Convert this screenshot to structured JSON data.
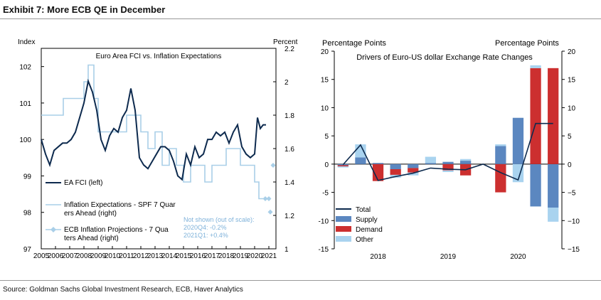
{
  "exhibit_title": "Exhibit 7: More ECB QE in December",
  "source": "Source: Goldman Sachs Global Investment Research, ECB, Haver Analytics",
  "chart_data": [
    {
      "type": "line",
      "title": "Euro Area FCI vs. Inflation Expectations",
      "left_axis_label": "Index",
      "right_axis_label": "Percent",
      "left_ylim": [
        97,
        102.5
      ],
      "left_ticks": [
        "97",
        "98",
        "99",
        "100",
        "101",
        "102"
      ],
      "right_ylim": [
        1,
        2.2
      ],
      "right_ticks": [
        "1",
        "1.2",
        "1.4",
        "1.6",
        "1.8",
        "2",
        "2.2"
      ],
      "xlim": [
        2005,
        2021.5
      ],
      "x_ticks": [
        "2005",
        "2006",
        "2007",
        "2008",
        "2009",
        "2010",
        "2011",
        "2012",
        "2013",
        "2014",
        "2015",
        "2016",
        "2017",
        "2018",
        "2019",
        "2020",
        "2021"
      ],
      "legend": [
        "EA FCI (left)",
        "Inflation Expectations - SPF 7 Quarters Ahead (right)",
        "ECB Inflation Projections - 7 Quarters Ahead (right)"
      ],
      "annotation": [
        "Not shown (out of scale):",
        "2020Q4: -0.2%",
        "2021Q1: +0.4%"
      ],
      "colors": {
        "fci": "#0d2a4e",
        "spf": "#a9cfe8",
        "ecb": "#a9cfe8"
      },
      "series": [
        {
          "name": "EA FCI (left)",
          "axis": "left",
          "x": [
            2005.0,
            2005.3,
            2005.6,
            2005.9,
            2006.2,
            2006.5,
            2006.8,
            2007.1,
            2007.4,
            2007.7,
            2008.0,
            2008.3,
            2008.6,
            2008.9,
            2009.2,
            2009.5,
            2009.8,
            2010.1,
            2010.4,
            2010.7,
            2011.0,
            2011.3,
            2011.6,
            2011.9,
            2012.2,
            2012.5,
            2012.8,
            2013.1,
            2013.4,
            2013.7,
            2014.0,
            2014.3,
            2014.6,
            2014.9,
            2015.2,
            2015.5,
            2015.8,
            2016.1,
            2016.4,
            2016.7,
            2017.0,
            2017.3,
            2017.6,
            2017.9,
            2018.2,
            2018.5,
            2018.8,
            2019.1,
            2019.4,
            2019.7,
            2020.0,
            2020.2,
            2020.4,
            2020.6,
            2020.8
          ],
          "y": [
            100.0,
            99.6,
            99.3,
            99.7,
            99.8,
            99.9,
            99.9,
            100.0,
            100.2,
            100.6,
            101.0,
            101.6,
            101.3,
            100.8,
            100.0,
            99.7,
            100.1,
            100.3,
            100.2,
            100.6,
            100.8,
            101.4,
            100.8,
            99.5,
            99.3,
            99.2,
            99.4,
            99.6,
            99.8,
            99.8,
            99.7,
            99.4,
            99.0,
            98.9,
            99.6,
            99.3,
            99.8,
            99.5,
            99.6,
            100.0,
            100.0,
            100.2,
            100.1,
            100.2,
            99.9,
            100.2,
            100.4,
            99.8,
            99.6,
            99.5,
            99.6,
            100.6,
            100.3,
            100.4,
            100.4
          ]
        },
        {
          "name": "Inflation Expectations - SPF 7 Quarters Ahead (right)",
          "axis": "right",
          "x": [
            2005.0,
            2006.5,
            2006.55,
            2007.5,
            2007.55,
            2008.0,
            2008.3,
            2008.7,
            2009.0,
            2009.5,
            2010.0,
            2010.5,
            2011.0,
            2011.5,
            2012.0,
            2012.5,
            2013.0,
            2013.5,
            2014.0,
            2014.5,
            2015.0,
            2015.5,
            2016.0,
            2016.5,
            2017.0,
            2017.5,
            2018.0,
            2018.5,
            2019.0,
            2019.5,
            2020.0,
            2020.3,
            2020.6
          ],
          "y": [
            1.8,
            1.8,
            1.9,
            1.9,
            1.9,
            2.0,
            2.1,
            1.9,
            1.7,
            1.7,
            1.7,
            1.7,
            1.8,
            1.8,
            1.7,
            1.6,
            1.7,
            1.5,
            1.6,
            1.5,
            1.4,
            1.5,
            1.5,
            1.4,
            1.5,
            1.5,
            1.6,
            1.6,
            1.5,
            1.5,
            1.4,
            1.3,
            1.3
          ]
        },
        {
          "name": "ECB Inflation Projections - 7 Quarters Ahead (right)",
          "axis": "right",
          "x": [
            2020.75,
            2021.0,
            2021.1,
            2021.3
          ],
          "y": [
            1.3,
            1.3,
            1.22,
            1.5
          ]
        }
      ]
    },
    {
      "type": "bar",
      "title": "Drivers of Euro-US dollar Exchange Rate Changes",
      "left_axis_label": "Percentage Points",
      "right_axis_label": "Percentage Points",
      "ylim": [
        -15,
        20
      ],
      "y_ticks": [
        "-15",
        "-10",
        "-5",
        "0",
        "5",
        "10",
        "15",
        "20"
      ],
      "categories": [
        "2017Q4",
        "2018Q1",
        "2018Q2",
        "2018Q3",
        "2018Q4",
        "2019Q1",
        "2019Q2",
        "2019Q3",
        "2019Q4",
        "2020Q1",
        "2020Q2",
        "2020Q3",
        "2020Q4"
      ],
      "x_labels": [
        "2018",
        "2019",
        "2020"
      ],
      "legend": [
        "Total",
        "Supply",
        "Demand",
        "Other"
      ],
      "colors": {
        "Total": "#0d2a4e",
        "Supply": "#5b87c0",
        "Demand": "#cc2f2f",
        "Other": "#a9d3ef"
      },
      "series": [
        {
          "name": "Supply",
          "values": [
            -0.2,
            1.2,
            0.2,
            -0.9,
            -0.7,
            0.2,
            0.4,
            0.6,
            0.0,
            3.2,
            8.2,
            -7.5,
            -7.7
          ]
        },
        {
          "name": "Demand",
          "values": [
            -0.2,
            0.0,
            -3.0,
            -1.0,
            -0.8,
            0.0,
            -1.1,
            -2.0,
            0.0,
            -5.0,
            0.0,
            17.0,
            17.0
          ]
        },
        {
          "name": "Other",
          "values": [
            -0.2,
            2.3,
            0.0,
            -0.5,
            -0.5,
            1.1,
            -0.3,
            0.3,
            0.0,
            0.3,
            -3.2,
            0.5,
            -2.5
          ]
        },
        {
          "name": "Total",
          "values": [
            -0.1,
            3.4,
            -2.9,
            -2.2,
            -1.6,
            -0.7,
            -0.9,
            -1.0,
            0.0,
            -1.5,
            -2.8,
            7.2,
            7.2
          ]
        }
      ]
    }
  ]
}
